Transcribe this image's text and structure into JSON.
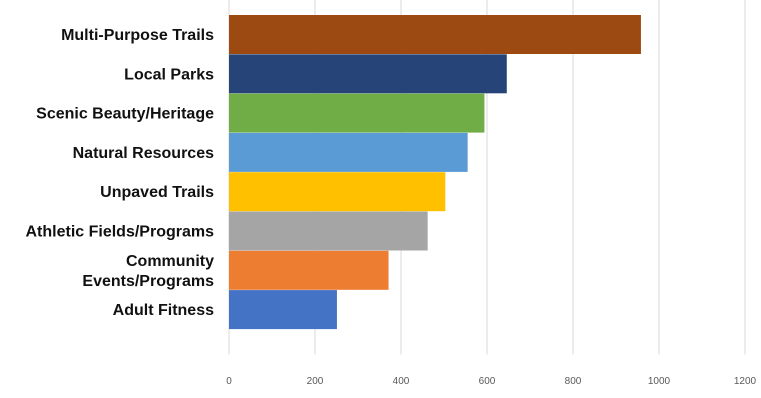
{
  "chart_data": {
    "type": "bar",
    "orientation": "horizontal",
    "categories": [
      [
        "Multi-Purpose Trails"
      ],
      [
        "Local Parks"
      ],
      [
        "Scenic Beauty/Heritage"
      ],
      [
        "Natural Resources"
      ],
      [
        "Unpaved Trails"
      ],
      [
        "Athletic Fields/Programs"
      ],
      [
        "Community",
        "Events/Programs"
      ],
      [
        "Adult Fitness"
      ]
    ],
    "values": [
      958,
      646,
      594,
      555,
      503,
      462,
      371,
      251
    ],
    "colors": [
      "#9c4a12",
      "#264478",
      "#70ad47",
      "#5b9bd5",
      "#ffc000",
      "#a5a5a5",
      "#ed7d31",
      "#4472c4"
    ],
    "xlim": [
      0,
      1200
    ],
    "x_ticks": [
      "0",
      "200",
      "400",
      "600",
      "800",
      "1000",
      "1200"
    ],
    "grid": true,
    "title": "",
    "xlabel": "",
    "ylabel": ""
  }
}
